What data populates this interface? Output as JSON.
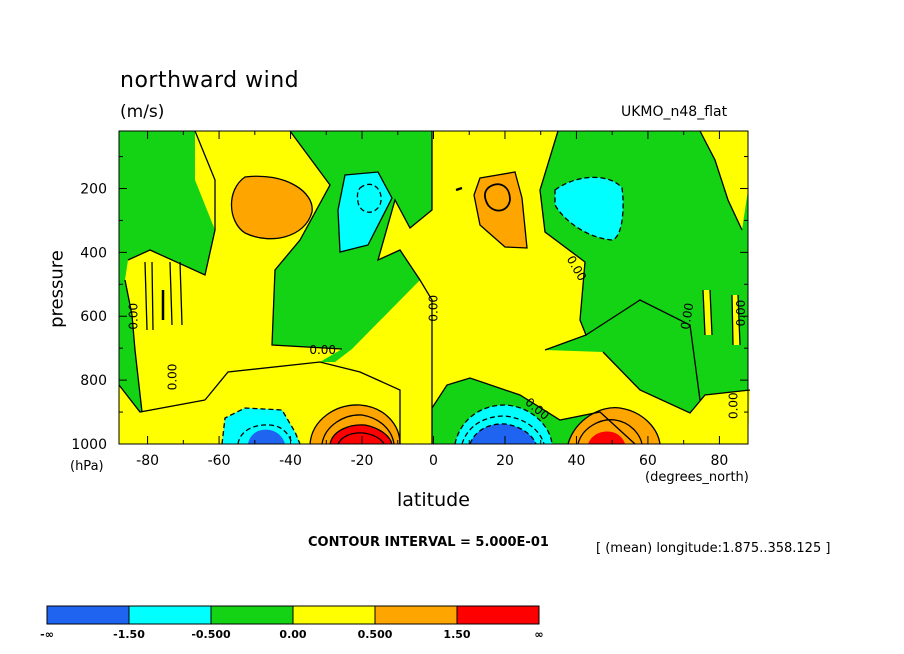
{
  "chart_data": {
    "type": "heatmap",
    "title": "northward wind",
    "units": "(m/s)",
    "dataset": "UKMO_n48_flat",
    "xlabel": "latitude",
    "xunit": "(degrees_north)",
    "ylabel": "pressure",
    "yunit": "(hPa)",
    "xlim": [
      -88,
      88
    ],
    "ylim": [
      1000,
      20
    ],
    "y_inverted": true,
    "x_ticks": [
      -80,
      -60,
      -40,
      -20,
      0,
      20,
      40,
      60,
      80
    ],
    "x_tick_labels": [
      "-80",
      "-60",
      "-40",
      "-20",
      "0",
      "20",
      "40",
      "60",
      "80"
    ],
    "y_ticks": [
      200,
      400,
      600,
      800,
      1000
    ],
    "y_tick_labels": [
      "200",
      "400",
      "600",
      "800",
      "1000"
    ],
    "contour_interval_text": "CONTOUR INTERVAL = 5.000E-01",
    "averaging_text": "[ (mean) longitude:1.875..358.125 ]",
    "contour_labels": [
      {
        "text": "0.00",
        "lat": -84,
        "p": 600,
        "rot": -90
      },
      {
        "text": "0.00",
        "lat": -73,
        "p": 790,
        "rot": -90
      },
      {
        "text": "0.00",
        "lat": -31,
        "p": 706,
        "rot": 0
      },
      {
        "text": "0.00",
        "lat": 0,
        "p": 575,
        "rot": -90
      },
      {
        "text": "0.00",
        "lat": 40,
        "p": 450,
        "rot": 60
      },
      {
        "text": "0.00",
        "lat": 29,
        "p": 890,
        "rot": 40
      },
      {
        "text": "0.00",
        "lat": 71,
        "p": 600,
        "rot": -80
      },
      {
        "text": "0.00",
        "lat": 86,
        "p": 590,
        "rot": -90
      },
      {
        "text": "0.00",
        "lat": 84,
        "p": 880,
        "rot": -90
      }
    ],
    "legend": {
      "colors": [
        "#1e64f0",
        "#00ffff",
        "#14d214",
        "#ffff00",
        "#ffa500",
        "#ff0000"
      ],
      "labels": [
        "-∞",
        "-1.50",
        "-0.500",
        "0.00",
        "0.500",
        "1.50",
        "∞"
      ]
    }
  }
}
